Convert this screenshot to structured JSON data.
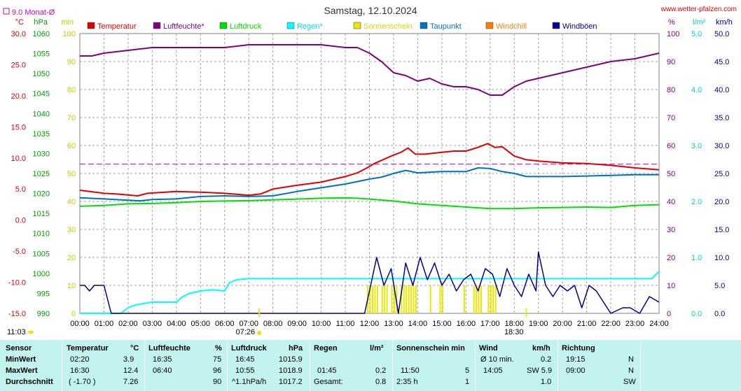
{
  "header": {
    "title": "Samstag, 12.10.2024",
    "source": "www.wetter-pfalzen.com",
    "monthly_avg_label": "9.0 Monat-Ø"
  },
  "units": {
    "temp": "°C",
    "pressure": "hPa",
    "minutes": "min",
    "humidity": "%",
    "rain": "l/m²",
    "wind": "km/h"
  },
  "legend": [
    {
      "key": "temp",
      "label": "Temperatur",
      "color": "#e00000"
    },
    {
      "key": "hum",
      "label": "Luftfeuchte*",
      "color": "#800080"
    },
    {
      "key": "press",
      "label": "Luftdruck",
      "color": "#00e000"
    },
    {
      "key": "rain",
      "label": "Regen*",
      "color": "#00ffff"
    },
    {
      "key": "sun",
      "label": "Sonnenschein",
      "color": "#e8e800"
    },
    {
      "key": "dew",
      "label": "Taupunkt",
      "color": "#0070c0"
    },
    {
      "key": "chill",
      "label": "Windchill",
      "color": "#ff8000"
    },
    {
      "key": "gust",
      "label": "Windböen",
      "color": "#000090"
    }
  ],
  "sun_events": {
    "sunrise": "07:26",
    "sunset": "18:30",
    "left_time": "11:03"
  },
  "chart_data": {
    "type": "line",
    "title": "Samstag, 12.10.2024",
    "x_ticks": [
      "00:00",
      "01:00",
      "02:00",
      "03:00",
      "04:00",
      "05:00",
      "06:00",
      "07:00",
      "08:00",
      "09:00",
      "10:00",
      "11:00",
      "12:00",
      "13:00",
      "14:00",
      "15:00",
      "16:00",
      "17:00",
      "18:00",
      "19:00",
      "20:00",
      "21:00",
      "22:00",
      "23:00",
      "24:00"
    ],
    "axes": {
      "temp": {
        "label": "°C",
        "range": [
          -15,
          30
        ],
        "ticks": [
          "30.0",
          "25.0",
          "20.0",
          "15.0",
          "10.0",
          "5.0",
          "0.0",
          "-5.0",
          "-10.0",
          "-15.0"
        ]
      },
      "pressure": {
        "label": "hPa",
        "range": [
          990,
          1060
        ],
        "ticks": [
          "1060",
          "1055",
          "1050",
          "1045",
          "1040",
          "1035",
          "1030",
          "1025",
          "1020",
          "1015",
          "1010",
          "1005",
          "1000",
          "995",
          "990"
        ]
      },
      "minutes": {
        "label": "min",
        "range": [
          0,
          100
        ],
        "ticks": [
          "100",
          "90",
          "80",
          "70",
          "60",
          "50",
          "40",
          "30",
          "20",
          "10",
          "0"
        ]
      },
      "humidity": {
        "label": "%",
        "range": [
          0,
          100
        ],
        "ticks": [
          "100",
          "90",
          "80",
          "70",
          "60",
          "50",
          "40",
          "30",
          "20",
          "10",
          "0"
        ]
      },
      "rain": {
        "label": "l/m²",
        "range": [
          0,
          5
        ],
        "ticks": [
          "5.0",
          "4.0",
          "3.0",
          "2.0",
          "1.0",
          "0.0"
        ]
      },
      "wind": {
        "label": "km/h",
        "range": [
          0,
          50
        ],
        "ticks": [
          "50.0",
          "45.0",
          "40.0",
          "35.0",
          "30.0",
          "25.0",
          "20.0",
          "15.0",
          "10.0",
          "5.0",
          "0.0"
        ]
      }
    },
    "monthly_avg_temp": 9.0,
    "series": [
      {
        "name": "Temperatur",
        "axis": "temp",
        "x": [
          0,
          1,
          1.5,
          2.4,
          2.8,
          4,
          5,
          6,
          7,
          7.5,
          8,
          9,
          10,
          11,
          11.5,
          11.9,
          12.2,
          12.5,
          12.9,
          13.3,
          13.6,
          13.9,
          14.3,
          15,
          15.5,
          16,
          16.5,
          16.9,
          17.2,
          17.5,
          18,
          18.5,
          19,
          20,
          21,
          22,
          23,
          24
        ],
        "values": [
          4.8,
          4.3,
          4.2,
          3.9,
          4.3,
          4.6,
          4.5,
          4.3,
          4.0,
          4.2,
          5.0,
          5.6,
          6.1,
          7.0,
          7.6,
          8.4,
          9.1,
          9.6,
          10.3,
          10.9,
          11.6,
          10.6,
          10.6,
          10.9,
          11.1,
          11.1,
          11.7,
          12.3,
          11.7,
          11.8,
          10.3,
          9.7,
          9.5,
          9.2,
          9.1,
          8.8,
          8.4,
          8.1
        ]
      },
      {
        "name": "Luftfeuchte*",
        "axis": "humidity",
        "x": [
          0,
          0.5,
          1,
          2,
          3,
          4,
          5,
          6,
          7,
          8,
          9,
          10,
          11,
          11.5,
          12,
          12.5,
          13,
          13.5,
          14,
          14.5,
          15,
          15.5,
          16,
          16.5,
          17,
          17.5,
          18,
          18.5,
          19,
          20,
          21,
          22,
          23,
          24
        ],
        "values": [
          92,
          92,
          93,
          94,
          95,
          95,
          95,
          95,
          96,
          96,
          96,
          96,
          95,
          95,
          93,
          90,
          86,
          85,
          83,
          84,
          82,
          81,
          81,
          80,
          78,
          78,
          81,
          83,
          84,
          86,
          88,
          90,
          91,
          93
        ]
      },
      {
        "name": "Luftdruck",
        "axis": "pressure",
        "x": [
          0,
          1,
          2,
          3,
          4,
          5,
          6,
          7,
          8,
          9,
          10,
          11,
          11.5,
          12,
          13,
          14,
          15,
          16,
          17,
          18,
          19,
          20,
          21,
          22,
          23,
          24
        ],
        "values": [
          1016.8,
          1017.0,
          1017.4,
          1017.5,
          1017.7,
          1018.0,
          1018.1,
          1018.2,
          1018.4,
          1018.6,
          1018.8,
          1018.9,
          1018.8,
          1018.6,
          1018.1,
          1017.4,
          1017.0,
          1016.6,
          1016.2,
          1016.2,
          1016.4,
          1016.5,
          1016.6,
          1016.5,
          1017.0,
          1017.2
        ]
      },
      {
        "name": "Taupunkt",
        "axis": "temp",
        "x": [
          0,
          1,
          2,
          2.5,
          3,
          4,
          5,
          6,
          7,
          8,
          9,
          10,
          11,
          11.5,
          12,
          12.5,
          13,
          13.5,
          14,
          15,
          16,
          16.5,
          17,
          17.5,
          18,
          18.5,
          19,
          20,
          21,
          22,
          23,
          24
        ],
        "values": [
          3.6,
          3.4,
          3.2,
          3.1,
          3.3,
          3.4,
          3.8,
          3.9,
          3.8,
          3.9,
          4.6,
          5.2,
          5.8,
          6.2,
          6.6,
          6.9,
          7.5,
          8.0,
          7.6,
          7.8,
          7.8,
          8.4,
          8.3,
          7.8,
          7.5,
          7.0,
          7.0,
          7.0,
          7.1,
          7.2,
          7.3,
          7.3
        ]
      },
      {
        "name": "Regen*",
        "axis": "rain",
        "x": [
          0,
          1.7,
          2,
          2.3,
          2.7,
          3,
          4,
          4.2,
          4.5,
          5,
          5.5,
          6,
          6.2,
          6.5,
          7,
          7.5,
          8,
          9,
          10,
          11,
          12,
          13,
          14,
          15,
          16,
          17,
          18,
          19,
          20,
          21,
          22,
          23,
          23.7,
          24
        ],
        "values": [
          0,
          0,
          0.1,
          0.15,
          0.18,
          0.2,
          0.2,
          0.28,
          0.35,
          0.4,
          0.42,
          0.4,
          0.55,
          0.6,
          0.62,
          0.62,
          0.62,
          0.62,
          0.62,
          0.62,
          0.62,
          0.62,
          0.62,
          0.62,
          0.62,
          0.62,
          0.62,
          0.62,
          0.62,
          0.62,
          0.62,
          0.62,
          0.62,
          0.75
        ]
      },
      {
        "name": "Windböen",
        "axis": "wind",
        "x": [
          0,
          0.2,
          0.4,
          0.6,
          0.8,
          1,
          1.3,
          1.6,
          2,
          2.2,
          2.6,
          3,
          3.5,
          4,
          4.5,
          5,
          5.5,
          6,
          6.5,
          7,
          7.5,
          8,
          8.5,
          9,
          9.5,
          10,
          10.5,
          11,
          11.5,
          11.8,
          12,
          12.3,
          12.6,
          12.9,
          13.2,
          13.5,
          13.8,
          14.1,
          14.4,
          14.7,
          15,
          15.3,
          15.6,
          15.9,
          16.2,
          16.5,
          16.8,
          17.1,
          17.4,
          17.7,
          18,
          18.3,
          18.6,
          18.9,
          19.0,
          19.3,
          19.6,
          19.9,
          20.2,
          20.5,
          20.8,
          21.1,
          21.4,
          21.7,
          22,
          22.5,
          22.8,
          23.2,
          23.6,
          24
        ],
        "values": [
          5,
          5,
          4,
          5,
          5,
          5,
          0,
          0,
          0,
          0,
          0,
          0,
          0,
          0,
          0,
          0,
          0,
          0,
          0,
          0,
          0,
          0,
          0,
          0,
          0,
          0,
          0,
          0,
          0,
          0,
          4,
          10,
          5,
          8,
          0,
          9,
          5,
          10,
          6,
          9,
          5,
          7,
          4,
          6,
          7,
          4,
          8,
          7,
          3,
          8,
          5,
          3,
          7,
          4,
          11,
          5,
          3,
          5,
          4,
          5,
          1,
          5,
          4,
          2,
          0,
          1,
          1,
          0,
          3,
          2
        ]
      }
    ],
    "sunshine_minutes": {
      "axis": "minutes",
      "x": [
        11.9,
        12,
        12.1,
        12.2,
        12.3,
        12.5,
        12.6,
        12.7,
        12.9,
        13.0,
        13.1,
        13.3,
        13.4,
        13.5,
        13.6,
        13.7,
        13.8,
        13.9,
        14.5,
        14.9,
        15.0,
        15.9,
        16.3,
        16.4,
        16.5,
        16.6,
        16.9,
        17.0,
        17.1,
        17.2
      ],
      "values": [
        5,
        5,
        5,
        5,
        5,
        5,
        5,
        5,
        5,
        5,
        5,
        5,
        5,
        5,
        5,
        5,
        5,
        5,
        5,
        5,
        5,
        5,
        5,
        5,
        5,
        5,
        5,
        5,
        5,
        5
      ]
    },
    "gridlines": true
  },
  "stats": {
    "headers": {
      "sensor": "Sensor",
      "temp": "Temperatur",
      "temp_unit": "°C",
      "hum": "Luftfeuchte",
      "hum_unit": "%",
      "press": "Luftdruck",
      "press_unit": "hPa",
      "rain": "Regen",
      "rain_unit": "l/m²",
      "sun": "Sonnenschein min",
      "wind": "Wind",
      "wind_unit": "km/h",
      "dir": "Richtung"
    },
    "rows": [
      {
        "label": "MinWert",
        "temp_time": "02:20",
        "temp_val": "3.9",
        "hum_time": "16:35",
        "hum_val": "75",
        "press_time": "16:45",
        "press_val": "1015.9",
        "rain_time": "",
        "rain_val": "",
        "sun_time": "",
        "sun_val": "",
        "wind_time": "Ø 10 min.",
        "wind_val": "0.2",
        "dir_time": "19:15",
        "dir_val": "N"
      },
      {
        "label": "MaxWert",
        "temp_time": "16:30",
        "temp_val": "12.4",
        "hum_time": "06:40",
        "hum_val": "96",
        "press_time": "10:55",
        "press_val": "1018.9",
        "rain_time": "01:45",
        "rain_val": "0.2",
        "sun_time": "11:50",
        "sun_val": "5",
        "wind_time": "14:05",
        "wind_val": "SW 5.9",
        "dir_time": "09:00",
        "dir_val": "N"
      },
      {
        "label": "Durchschnitt",
        "temp_time": "( -1.70 )",
        "temp_val": "7.26",
        "hum_time": "",
        "hum_val": "90",
        "press_time": "^1.1hPa/h",
        "press_val": "1017.2",
        "rain_time": "Gesamt:",
        "rain_val": "0.8",
        "sun_time": "2:35 h",
        "sun_val": "1",
        "wind_time": "",
        "wind_val": "1.0",
        "dir_time": "",
        "dir_val": "SW"
      }
    ]
  }
}
